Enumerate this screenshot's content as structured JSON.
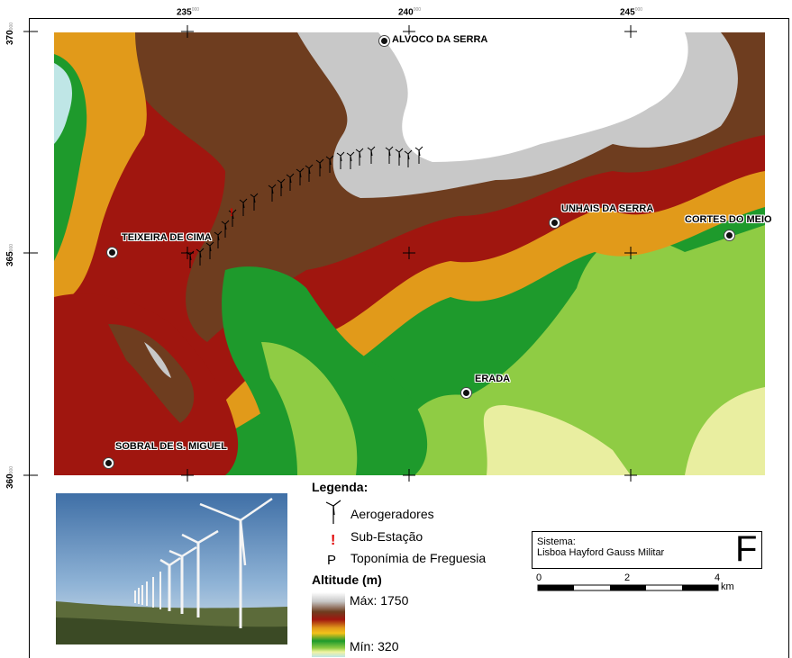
{
  "map": {
    "x_ticks": [
      {
        "major": "235",
        "minor": "000"
      },
      {
        "major": "240",
        "minor": "000"
      },
      {
        "major": "245",
        "minor": "000"
      }
    ],
    "y_ticks": [
      {
        "major": "370",
        "minor": "000"
      },
      {
        "major": "365",
        "minor": "000"
      },
      {
        "major": "360",
        "minor": "000"
      }
    ],
    "places": [
      {
        "name": "ALVOCO DA SERRA"
      },
      {
        "name": "UNHAIS DA SERRA"
      },
      {
        "name": "CORTES DO MEIO"
      },
      {
        "name": "TEIXEIRA DE CIMA"
      },
      {
        "name": "ERADA"
      },
      {
        "name": "SOBRAL DE S. MIGUEL"
      }
    ],
    "colors": {
      "max": "#ffffff",
      "brown": "#6e3d1f",
      "red": "#a0160f",
      "orange": "#e19a1a",
      "green": "#1e9a2c",
      "light_green": "#8fcc44",
      "min": "#bfe6e6"
    }
  },
  "legend": {
    "title": "Legenda:",
    "items": [
      {
        "icon": "wind-turbine-icon",
        "label": "Aerogeradores"
      },
      {
        "icon": "substation-icon",
        "symbol": "!",
        "label": "Sub-Estação"
      },
      {
        "icon": "parish-toponym-icon",
        "symbol": "P",
        "label": "Toponímia de Freguesia"
      }
    ],
    "altitude_title": "Altitude (m)",
    "altitude_max": "Máx: 1750",
    "altitude_min": "Mín: 320"
  },
  "system": {
    "label": "Sistema:",
    "name": "Lisboa Hayford Gauss Militar",
    "letter": "F",
    "scale_ticks": [
      "0",
      "2",
      "4"
    ],
    "scale_unit": "km"
  }
}
